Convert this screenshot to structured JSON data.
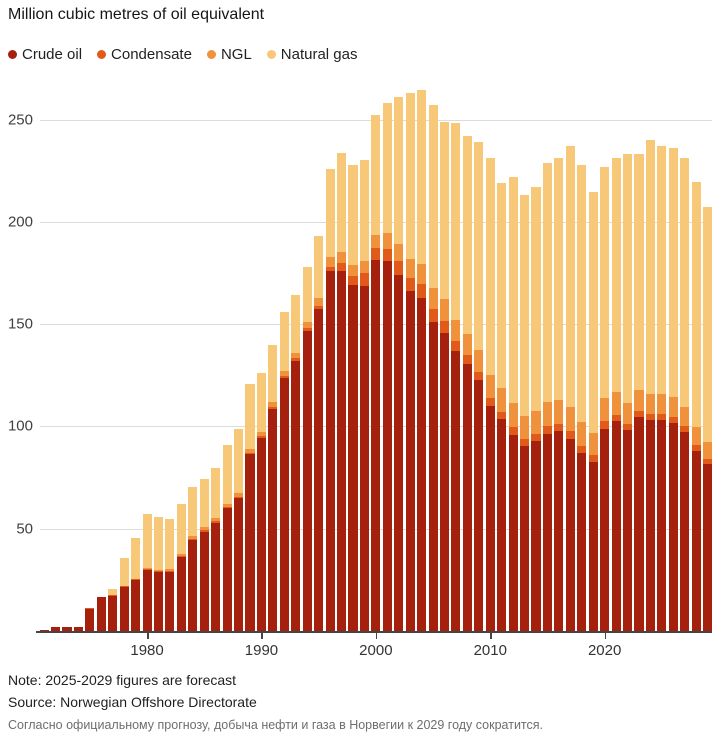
{
  "footer": {
    "note": "Note: 2025-2029 figures are forecast",
    "source": "Source: Norwegian Offshore Directorate",
    "caption_ru": "Согласно официальному прогнозу, добыча нефти и газа в Норвегии к 2029 году сократится."
  },
  "chart_data": {
    "type": "bar",
    "stacked": true,
    "title": "Million cubic metres of oil equivalent",
    "grid": true,
    "legend_position": "top",
    "ylim": [
      0,
      267
    ],
    "yticks": [
      50,
      100,
      150,
      200,
      250
    ],
    "xticks": [
      1980,
      1990,
      2000,
      2010,
      2020
    ],
    "years": [
      1971,
      1972,
      1973,
      1974,
      1975,
      1976,
      1977,
      1978,
      1979,
      1980,
      1981,
      1982,
      1983,
      1984,
      1985,
      1986,
      1987,
      1988,
      1989,
      1990,
      1991,
      1992,
      1993,
      1994,
      1995,
      1996,
      1997,
      1998,
      1999,
      2000,
      2001,
      2002,
      2003,
      2004,
      2005,
      2006,
      2007,
      2008,
      2009,
      2010,
      2011,
      2012,
      2013,
      2014,
      2015,
      2016,
      2017,
      2018,
      2019,
      2020,
      2021,
      2022,
      2023,
      2024,
      2025,
      2026,
      2027,
      2028,
      2029
    ],
    "series": [
      {
        "name": "Crude oil",
        "color": "#a6200e",
        "values": [
          0.4,
          1.9,
          1.9,
          2.0,
          10.9,
          16.4,
          17.3,
          21.6,
          25.0,
          30.0,
          29.0,
          29.0,
          36.0,
          44.5,
          48.5,
          53.0,
          60.0,
          65.0,
          86.5,
          94.5,
          108.5,
          123.5,
          132.0,
          146.5,
          157.5,
          175.8,
          176.2,
          169.2,
          168.7,
          181.4,
          181.0,
          174.2,
          166.0,
          162.8,
          150.9,
          145.7,
          136.8,
          130.3,
          122.5,
          109.9,
          103.5,
          96.0,
          90.5,
          93.0,
          96.5,
          98.0,
          94.0,
          86.8,
          82.7,
          98.8,
          102.5,
          98.1,
          104.5,
          103.0,
          103.0,
          101.8,
          97.2,
          88.2,
          81.7
        ]
      },
      {
        "name": "Condensate",
        "color": "#e15a19",
        "values": [
          0,
          0,
          0,
          0,
          0.2,
          0.2,
          0.2,
          0.3,
          0.3,
          0.4,
          0.4,
          0.5,
          0.6,
          0.7,
          0.9,
          0.7,
          0.6,
          0.6,
          0.7,
          0.7,
          0.9,
          1.1,
          1.2,
          1.4,
          1.5,
          2.2,
          3.9,
          4.4,
          6.1,
          5.9,
          5.7,
          6.5,
          6.7,
          6.6,
          6.4,
          5.9,
          5.0,
          4.6,
          4.1,
          4.0,
          3.7,
          3.8,
          3.5,
          3.4,
          3.5,
          3.4,
          3.8,
          3.7,
          3.5,
          3.7,
          3.2,
          3.0,
          3.0,
          3.0,
          3.0,
          3.0,
          3.0,
          2.8,
          2.6
        ]
      },
      {
        "name": "NGL",
        "color": "#f0913c",
        "values": [
          0,
          0,
          0,
          0,
          0,
          0,
          0.1,
          0.3,
          0.4,
          0.5,
          0.6,
          0.7,
          0.9,
          1.1,
          1.4,
          1.5,
          1.6,
          1.8,
          2.0,
          2.2,
          2.4,
          2.6,
          2.9,
          3.3,
          3.8,
          4.8,
          5.4,
          5.3,
          5.9,
          6.5,
          7.7,
          8.4,
          9.0,
          9.8,
          10.3,
          10.5,
          10.4,
          10.4,
          10.9,
          11.0,
          11.4,
          11.5,
          10.9,
          11.3,
          11.8,
          11.6,
          11.8,
          11.5,
          10.7,
          11.4,
          11.0,
          10.5,
          10.5,
          10.0,
          10.0,
          9.5,
          9.3,
          8.5,
          8.0
        ]
      },
      {
        "name": "Natural gas",
        "color": "#f8c879",
        "values": [
          0,
          0,
          0,
          0,
          0,
          0,
          3.0,
          13.6,
          19.9,
          26.1,
          25.8,
          24.8,
          24.8,
          24.2,
          23.6,
          24.6,
          28.5,
          31.4,
          31.6,
          28.8,
          27.9,
          28.8,
          28.1,
          26.8,
          30.2,
          43.2,
          48.0,
          49.1,
          49.3,
          58.2,
          63.6,
          71.9,
          81.3,
          85.3,
          89.4,
          86.9,
          96.3,
          96.7,
          101.5,
          106.1,
          100.4,
          110.7,
          108.1,
          109.3,
          117.2,
          118.0,
          127.4,
          126.0,
          117.6,
          113.1,
          114.3,
          121.4,
          115.0,
          124.0,
          121.0,
          121.7,
          121.8,
          119.9,
          115.0
        ]
      }
    ]
  }
}
